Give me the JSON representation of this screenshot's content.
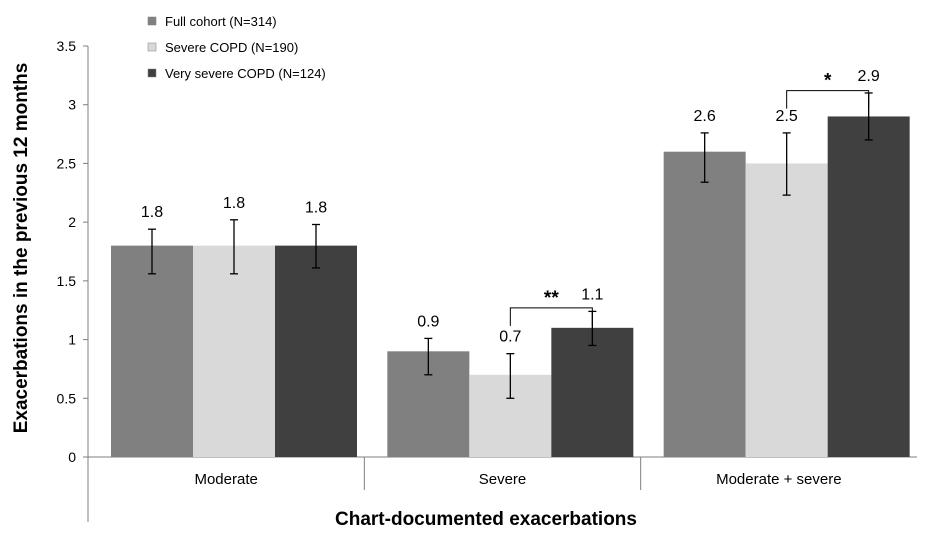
{
  "chart_data": {
    "type": "bar",
    "xlabel": "Chart-documented exacerbations",
    "ylabel": "Exacerbations in the previous 12 months",
    "ylim": [
      0,
      3.5
    ],
    "yticks": [
      0,
      0.5,
      1,
      1.5,
      2,
      2.5,
      3,
      3.5
    ],
    "ytick_labels": [
      "0",
      "0.5",
      "1",
      "1.5",
      "2",
      "2.5",
      "3",
      "3.5"
    ],
    "grid": false,
    "legend_position": "top-left",
    "categories": [
      "Moderate",
      "Severe",
      "Moderate + severe"
    ],
    "series": [
      {
        "name": "Full cohort (N=314)",
        "color": "#808080",
        "values": [
          1.8,
          0.9,
          2.6
        ],
        "value_labels": [
          "1.8",
          "0.9",
          "2.6"
        ],
        "error_low": [
          1.56,
          0.7,
          2.34
        ],
        "error_high": [
          1.94,
          1.01,
          2.76
        ]
      },
      {
        "name": "Severe COPD (N=190)",
        "color": "#d9d9d9",
        "values": [
          1.8,
          0.7,
          2.5
        ],
        "value_labels": [
          "1.8",
          "0.7",
          "2.5"
        ],
        "error_low": [
          1.56,
          0.5,
          2.23
        ],
        "error_high": [
          2.02,
          0.88,
          2.76
        ]
      },
      {
        "name": "Very severe COPD (N=124)",
        "color": "#404040",
        "values": [
          1.8,
          1.1,
          2.9
        ],
        "value_labels": [
          "1.8",
          "1.1",
          "2.9"
        ],
        "error_low": [
          1.61,
          0.95,
          2.7
        ],
        "error_high": [
          1.98,
          1.24,
          3.1
        ]
      }
    ],
    "annotations": [
      {
        "text": "**",
        "category": "Severe",
        "from_series": 1,
        "to_series": 2,
        "bracket_y": 1.27
      },
      {
        "text": "*",
        "category": "Moderate + severe",
        "from_series": 1,
        "to_series": 2,
        "bracket_y": 3.12
      }
    ]
  }
}
